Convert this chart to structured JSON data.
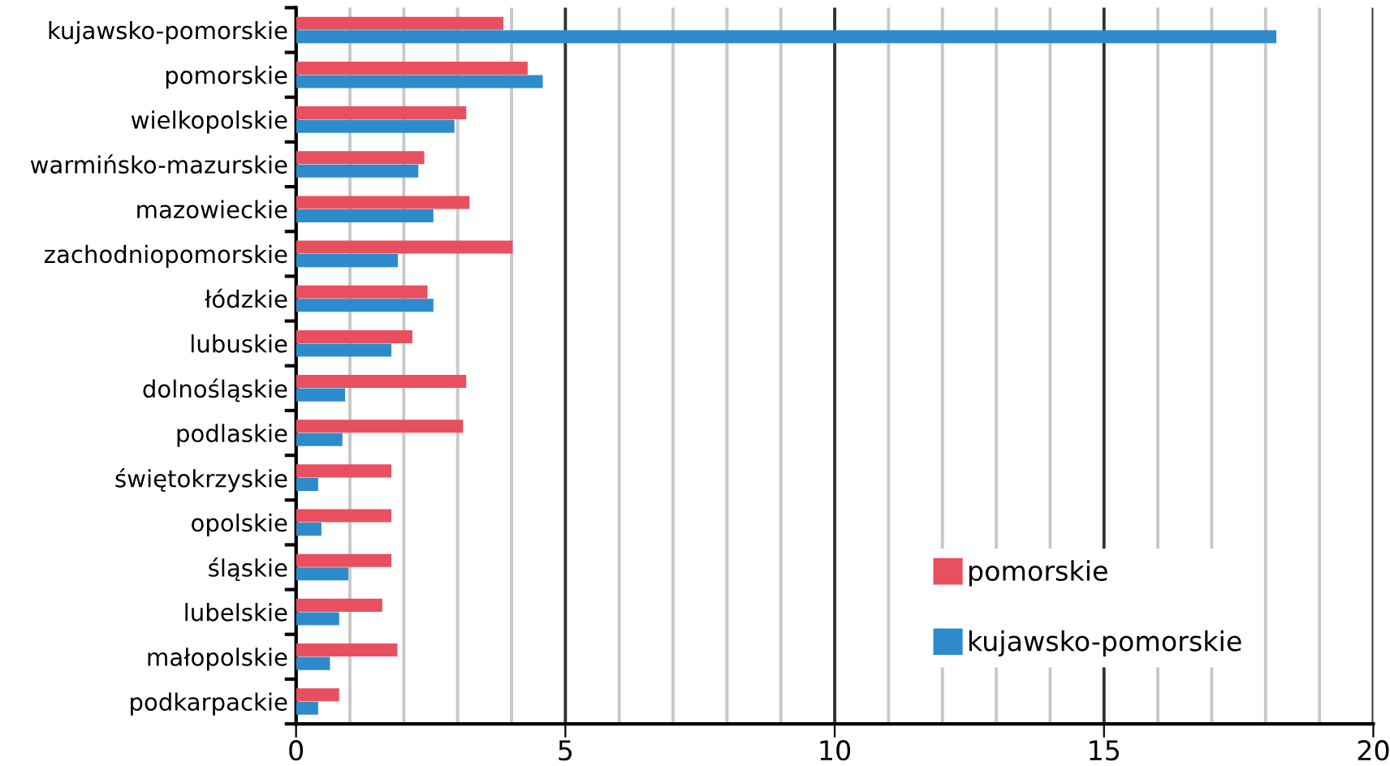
{
  "chart_data": {
    "type": "bar",
    "orientation": "horizontal",
    "categories": [
      "kujawsko-pomorskie",
      "pomorskie",
      "wielkopolskie",
      "warmińsko-mazurskie",
      "mazowieckie",
      "zachodniopomorskie",
      "łódzkie",
      "lubuskie",
      "dolnośląskie",
      "podlaskie",
      "świętokrzyskie",
      "opolskie",
      "śląskie",
      "lubelskie",
      "małopolskie",
      "podkarpackie"
    ],
    "series": [
      {
        "name": "pomorskie",
        "color": "#e8505f",
        "values": [
          3.85,
          4.3,
          3.16,
          2.38,
          3.22,
          4.02,
          2.44,
          2.16,
          3.16,
          3.1,
          1.77,
          1.77,
          1.77,
          1.6,
          1.88,
          0.8
        ]
      },
      {
        "name": "kujawsko-pomorskie",
        "color": "#2e8bcb",
        "values": [
          18.2,
          4.58,
          2.94,
          2.27,
          2.55,
          1.89,
          2.55,
          1.77,
          0.91,
          0.86,
          0.41,
          0.47,
          0.97,
          0.8,
          0.63,
          0.41
        ]
      }
    ],
    "xlim": [
      0,
      20
    ],
    "xticks": [
      0,
      {
        "value": 1,
        "label": null
      },
      {
        "value": 2,
        "label": null
      },
      {
        "value": 3,
        "label": null
      },
      {
        "value": 4,
        "label": null
      },
      5,
      {
        "value": 6,
        "label": null
      },
      {
        "value": 7,
        "label": null
      },
      {
        "value": 8,
        "label": null
      },
      {
        "value": 9,
        "label": null
      },
      10,
      {
        "value": 11,
        "label": null
      },
      {
        "value": 12,
        "label": null
      },
      {
        "value": 13,
        "label": null
      },
      {
        "value": 14,
        "label": null
      },
      15,
      {
        "value": 16,
        "label": null
      },
      {
        "value": 17,
        "label": null
      },
      {
        "value": 18,
        "label": null
      },
      {
        "value": 19,
        "label": null
      },
      20
    ],
    "grid": "x",
    "legend": "bottom right"
  }
}
